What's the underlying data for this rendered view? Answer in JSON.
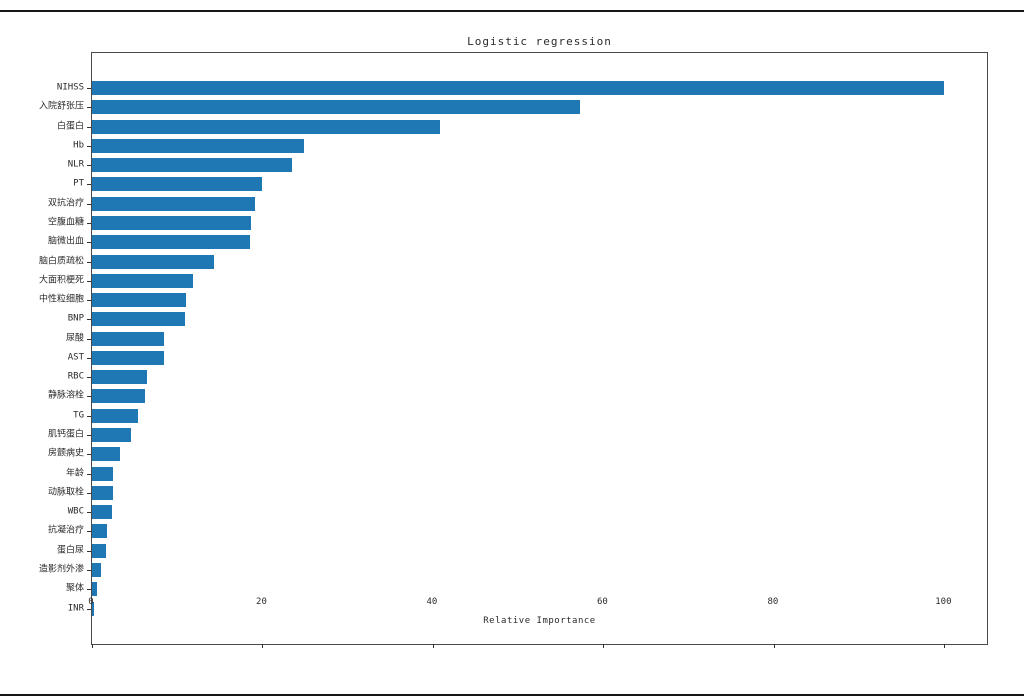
{
  "chart_data": {
    "type": "bar",
    "orientation": "horizontal",
    "title": "Logistic regression",
    "xlabel": "Relative Importance",
    "xlim": [
      0,
      105
    ],
    "xticks": [
      0,
      20,
      40,
      60,
      80,
      100
    ],
    "grid": false,
    "legend": null,
    "bar_color": "#1f77b4",
    "categories": [
      "NIHSS",
      "入院舒张压",
      "白蛋白",
      "Hb",
      "NLR",
      "PT",
      "双抗治疗",
      "空腹血糖",
      "脑微出血",
      "脑白质疏松",
      "大面积梗死",
      "中性粒细胞",
      "BNP",
      "尿酸",
      "AST",
      "RBC",
      "静脉溶栓",
      "TG",
      "肌钙蛋白",
      "房颤病史",
      "年龄",
      "动脉取栓",
      "WBC",
      "抗凝治疗",
      "蛋白尿",
      "造影剂外渗",
      "聚体",
      "INR"
    ],
    "values": [
      100,
      57.3,
      40.8,
      24.9,
      23.5,
      20,
      19.1,
      18.6,
      18.5,
      14.3,
      11.8,
      11.0,
      10.9,
      8.5,
      8.4,
      6.4,
      6.2,
      5.4,
      4.6,
      3.3,
      2.5,
      2.5,
      2.4,
      1.8,
      1.7,
      1.1,
      0.6,
      0.2
    ]
  }
}
